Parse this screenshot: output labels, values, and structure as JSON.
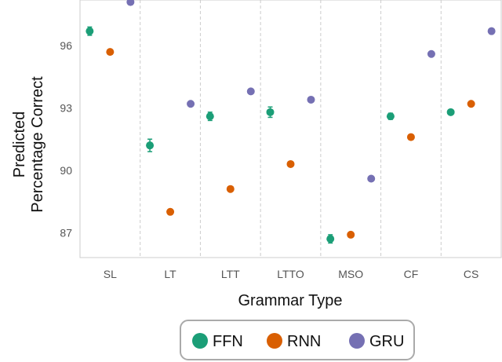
{
  "chart_data": {
    "type": "scatter",
    "title": "",
    "xlabel": "Grammar Type",
    "ylabel": "Predicted\nPercentage Correct",
    "categories": [
      "SL",
      "LT",
      "LTT",
      "LTTO",
      "MSO",
      "CF",
      "CS"
    ],
    "yticks": [
      87,
      90,
      93,
      96
    ],
    "ylim": [
      85.8,
      98.2
    ],
    "grid": "vertical dashed separators between categories",
    "legend_position": "bottom-center",
    "series": [
      {
        "name": "FFN",
        "color": "#1b9e77",
        "values": [
          96.7,
          91.2,
          92.6,
          92.8,
          86.7,
          92.6,
          92.8
        ],
        "errors": [
          0.2,
          0.3,
          0.2,
          0.25,
          0.2,
          0.15,
          0.1
        ]
      },
      {
        "name": "RNN",
        "color": "#d95f02",
        "values": [
          95.7,
          88.0,
          89.1,
          90.3,
          86.9,
          91.6,
          93.2
        ],
        "errors": [
          0.1,
          0.12,
          0.1,
          0.1,
          0.1,
          0.1,
          0.1
        ]
      },
      {
        "name": "GRU",
        "color": "#7570b3",
        "values": [
          98.1,
          93.2,
          93.8,
          93.4,
          89.6,
          95.6,
          96.7
        ],
        "errors": [
          0.1,
          0.1,
          0.1,
          0.1,
          0.1,
          0.1,
          0.1
        ]
      }
    ]
  }
}
